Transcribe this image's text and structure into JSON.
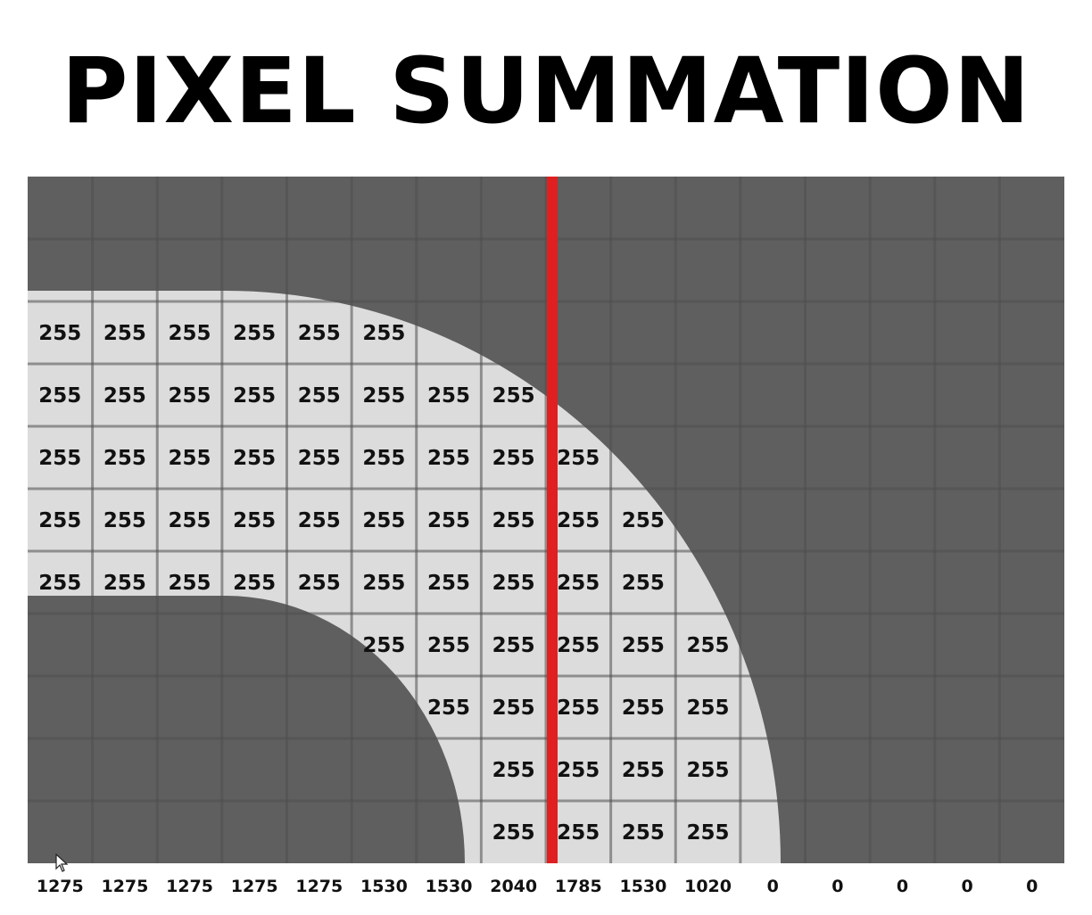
{
  "title": "PIXEL SUMMATION",
  "colors": {
    "background_pixel": "#5f5f5f",
    "foreground_pixel": "#dcdcdc",
    "grid_line": "#4e4e4e",
    "grid_line_light": "#c8c8c8",
    "scan_line": "#e02020",
    "text": "#111111"
  },
  "grid": {
    "rows": 11,
    "cols": 16,
    "pixel_value": "255",
    "cells": [
      {
        "row": 2,
        "col": 0,
        "value": "255"
      },
      {
        "row": 2,
        "col": 1,
        "value": "255"
      },
      {
        "row": 2,
        "col": 2,
        "value": "255"
      },
      {
        "row": 2,
        "col": 3,
        "value": "255"
      },
      {
        "row": 2,
        "col": 4,
        "value": "255"
      },
      {
        "row": 2,
        "col": 5,
        "value": "255"
      },
      {
        "row": 3,
        "col": 0,
        "value": "255"
      },
      {
        "row": 3,
        "col": 1,
        "value": "255"
      },
      {
        "row": 3,
        "col": 2,
        "value": "255"
      },
      {
        "row": 3,
        "col": 3,
        "value": "255"
      },
      {
        "row": 3,
        "col": 4,
        "value": "255"
      },
      {
        "row": 3,
        "col": 5,
        "value": "255"
      },
      {
        "row": 3,
        "col": 6,
        "value": "255"
      },
      {
        "row": 3,
        "col": 7,
        "value": "255"
      },
      {
        "row": 4,
        "col": 0,
        "value": "255"
      },
      {
        "row": 4,
        "col": 1,
        "value": "255"
      },
      {
        "row": 4,
        "col": 2,
        "value": "255"
      },
      {
        "row": 4,
        "col": 3,
        "value": "255"
      },
      {
        "row": 4,
        "col": 4,
        "value": "255"
      },
      {
        "row": 4,
        "col": 5,
        "value": "255"
      },
      {
        "row": 4,
        "col": 6,
        "value": "255"
      },
      {
        "row": 4,
        "col": 7,
        "value": "255"
      },
      {
        "row": 4,
        "col": 8,
        "value": "255"
      },
      {
        "row": 5,
        "col": 0,
        "value": "255"
      },
      {
        "row": 5,
        "col": 1,
        "value": "255"
      },
      {
        "row": 5,
        "col": 2,
        "value": "255"
      },
      {
        "row": 5,
        "col": 3,
        "value": "255"
      },
      {
        "row": 5,
        "col": 4,
        "value": "255"
      },
      {
        "row": 5,
        "col": 5,
        "value": "255"
      },
      {
        "row": 5,
        "col": 6,
        "value": "255"
      },
      {
        "row": 5,
        "col": 7,
        "value": "255"
      },
      {
        "row": 5,
        "col": 8,
        "value": "255"
      },
      {
        "row": 5,
        "col": 9,
        "value": "255"
      },
      {
        "row": 6,
        "col": 0,
        "value": "255"
      },
      {
        "row": 6,
        "col": 1,
        "value": "255"
      },
      {
        "row": 6,
        "col": 2,
        "value": "255"
      },
      {
        "row": 6,
        "col": 3,
        "value": "255"
      },
      {
        "row": 6,
        "col": 4,
        "value": "255"
      },
      {
        "row": 6,
        "col": 5,
        "value": "255"
      },
      {
        "row": 6,
        "col": 6,
        "value": "255"
      },
      {
        "row": 6,
        "col": 7,
        "value": "255"
      },
      {
        "row": 6,
        "col": 8,
        "value": "255"
      },
      {
        "row": 6,
        "col": 9,
        "value": "255"
      },
      {
        "row": 7,
        "col": 5,
        "value": "255"
      },
      {
        "row": 7,
        "col": 6,
        "value": "255"
      },
      {
        "row": 7,
        "col": 7,
        "value": "255"
      },
      {
        "row": 7,
        "col": 8,
        "value": "255"
      },
      {
        "row": 7,
        "col": 9,
        "value": "255"
      },
      {
        "row": 7,
        "col": 10,
        "value": "255"
      },
      {
        "row": 8,
        "col": 6,
        "value": "255"
      },
      {
        "row": 8,
        "col": 7,
        "value": "255"
      },
      {
        "row": 8,
        "col": 8,
        "value": "255"
      },
      {
        "row": 8,
        "col": 9,
        "value": "255"
      },
      {
        "row": 8,
        "col": 10,
        "value": "255"
      },
      {
        "row": 9,
        "col": 7,
        "value": "255"
      },
      {
        "row": 9,
        "col": 8,
        "value": "255"
      },
      {
        "row": 9,
        "col": 9,
        "value": "255"
      },
      {
        "row": 9,
        "col": 10,
        "value": "255"
      },
      {
        "row": 10,
        "col": 7,
        "value": "255"
      },
      {
        "row": 10,
        "col": 8,
        "value": "255"
      },
      {
        "row": 10,
        "col": 9,
        "value": "255"
      },
      {
        "row": 10,
        "col": 10,
        "value": "255"
      }
    ]
  },
  "column_sums": [
    "1275",
    "1275",
    "1275",
    "1275",
    "1275",
    "1530",
    "1530",
    "2040",
    "1785",
    "1530",
    "1020",
    "0",
    "0",
    "0",
    "0",
    "0"
  ]
}
